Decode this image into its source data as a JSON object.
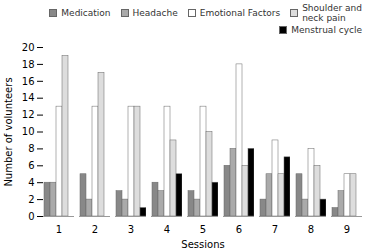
{
  "chart_data": {
    "type": "bar",
    "xlabel": "Sessions",
    "ylabel": "Number of volunteers",
    "categories": [
      1,
      2,
      3,
      4,
      5,
      6,
      7,
      8,
      9
    ],
    "series": [
      {
        "name": "Medication",
        "color": "#888888",
        "values": [
          4,
          5,
          3,
          4,
          3,
          6,
          2,
          5,
          1
        ]
      },
      {
        "name": "Headache",
        "color": "#aaaaaa",
        "values": [
          4,
          2,
          2,
          3,
          2,
          8,
          5,
          2,
          3
        ]
      },
      {
        "name": "Emotional Factors",
        "color": "#ffffff",
        "values": [
          13,
          13,
          13,
          13,
          13,
          18,
          9,
          8,
          5
        ]
      },
      {
        "name": "Shoulder and\nneck pain",
        "color": "#dddddd",
        "values": [
          19,
          17,
          13,
          9,
          10,
          6,
          5,
          6,
          5
        ]
      },
      {
        "name": "Menstrual cycle",
        "color": "#000000",
        "values": [
          0,
          0,
          1,
          5,
          4,
          8,
          7,
          2,
          0
        ]
      }
    ],
    "ylim": [
      0,
      20
    ],
    "yticks": [
      0,
      2,
      4,
      6,
      8,
      10,
      12,
      14,
      16,
      18,
      20
    ],
    "grid": false,
    "legend": "upper right"
  }
}
